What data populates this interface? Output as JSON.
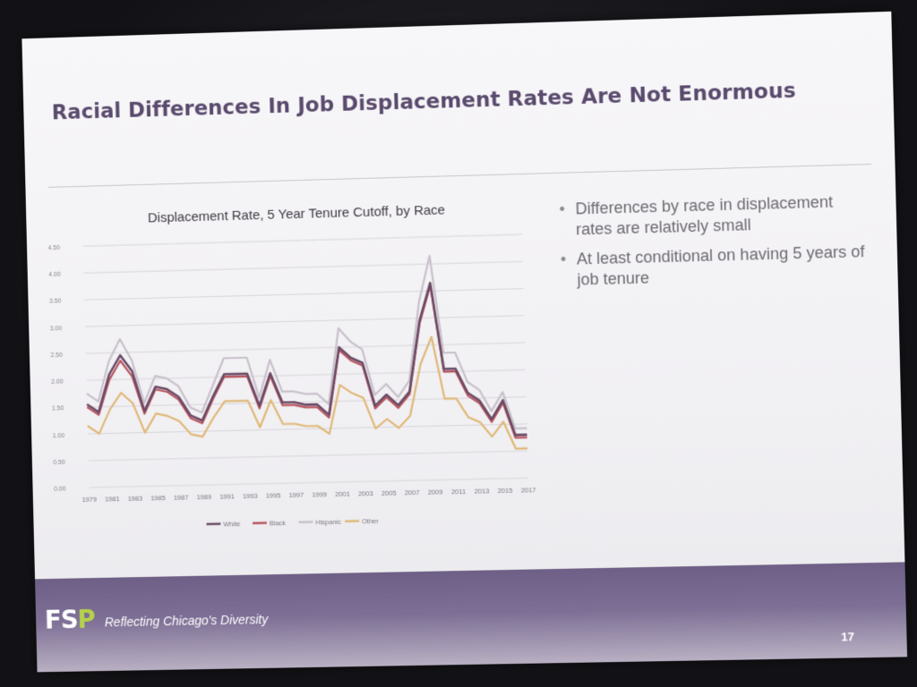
{
  "slide": {
    "title": "Racial Differences In Job Displacement Rates Are Not Enormous",
    "bullets": [
      "Differences by race in displacement rates are relatively small",
      "At least conditional on having 5 years of job tenure"
    ],
    "footer": {
      "logo_f": "FS",
      "logo_p": "P",
      "tagline": "Reflecting Chicago's Diversity",
      "page_number": "17"
    }
  },
  "chart_data": {
    "type": "line",
    "title": "Displacement Rate, 5 Year Tenure Cutoff, by Race",
    "xlabel": "",
    "ylabel": "",
    "ylim": [
      0,
      4.5
    ],
    "yticks": [
      0,
      0.5,
      1.0,
      1.5,
      2.0,
      2.5,
      3.0,
      3.5,
      4.0,
      4.5
    ],
    "ytick_labels": [
      "0.00",
      "0.50",
      "1.00",
      "1.50",
      "2.00",
      "2.50",
      "3.00",
      "3.50",
      "4.00",
      "4.50"
    ],
    "x": [
      1979,
      1980,
      1981,
      1982,
      1983,
      1984,
      1985,
      1986,
      1987,
      1988,
      1989,
      1990,
      1991,
      1992,
      1993,
      1994,
      1995,
      1996,
      1997,
      1998,
      1999,
      2000,
      2001,
      2002,
      2003,
      2004,
      2005,
      2006,
      2007,
      2008,
      2009,
      2010,
      2011,
      2012,
      2013,
      2014,
      2015,
      2016,
      2017
    ],
    "xtick_labels": [
      "1979",
      "1981",
      "1983",
      "1985",
      "1987",
      "1989",
      "1991",
      "1993",
      "1995",
      "1997",
      "1999",
      "2001",
      "2003",
      "2005",
      "2007",
      "2009",
      "2011",
      "2013",
      "2015",
      "2017"
    ],
    "grid": true,
    "legend_position": "bottom",
    "series": [
      {
        "name": "White",
        "color": "#6b4a66",
        "values": [
          1.55,
          1.4,
          2.1,
          2.45,
          2.15,
          1.4,
          1.85,
          1.8,
          1.65,
          1.3,
          1.2,
          1.65,
          2.05,
          2.05,
          2.05,
          1.45,
          2.05,
          1.5,
          1.5,
          1.45,
          1.45,
          1.25,
          2.5,
          2.3,
          2.2,
          1.4,
          1.6,
          1.4,
          1.65,
          2.95,
          3.65,
          2.05,
          2.05,
          1.6,
          1.45,
          1.1,
          1.45,
          0.8,
          0.8
        ]
      },
      {
        "name": "Black",
        "color": "#b7545c",
        "values": [
          1.5,
          1.35,
          2.0,
          2.35,
          2.05,
          1.35,
          1.8,
          1.75,
          1.6,
          1.25,
          1.15,
          1.6,
          2.0,
          2.0,
          2.0,
          1.4,
          2.0,
          1.45,
          1.45,
          1.4,
          1.4,
          1.2,
          2.45,
          2.25,
          2.15,
          1.35,
          1.55,
          1.35,
          1.6,
          2.9,
          3.6,
          2.0,
          2.0,
          1.55,
          1.4,
          1.05,
          1.4,
          0.75,
          0.75
        ]
      },
      {
        "name": "Hispanic",
        "color": "#c8c0ca",
        "values": [
          1.75,
          1.6,
          2.35,
          2.75,
          2.35,
          1.55,
          2.05,
          2.0,
          1.85,
          1.45,
          1.35,
          1.85,
          2.35,
          2.35,
          2.35,
          1.6,
          2.3,
          1.7,
          1.7,
          1.65,
          1.65,
          1.45,
          2.85,
          2.6,
          2.45,
          1.6,
          1.8,
          1.55,
          1.85,
          3.3,
          4.15,
          2.35,
          2.35,
          1.8,
          1.65,
          1.25,
          1.6,
          0.92,
          0.92
        ]
      },
      {
        "name": "Other",
        "color": "#e0b878",
        "values": [
          1.15,
          1.0,
          1.45,
          1.75,
          1.55,
          1.0,
          1.35,
          1.3,
          1.2,
          0.95,
          0.9,
          1.25,
          1.55,
          1.55,
          1.55,
          1.05,
          1.55,
          1.1,
          1.1,
          1.05,
          1.05,
          0.9,
          1.8,
          1.65,
          1.55,
          0.98,
          1.15,
          0.98,
          1.2,
          2.15,
          2.65,
          1.5,
          1.5,
          1.15,
          1.05,
          0.78,
          1.05,
          0.55,
          0.55
        ]
      }
    ]
  }
}
